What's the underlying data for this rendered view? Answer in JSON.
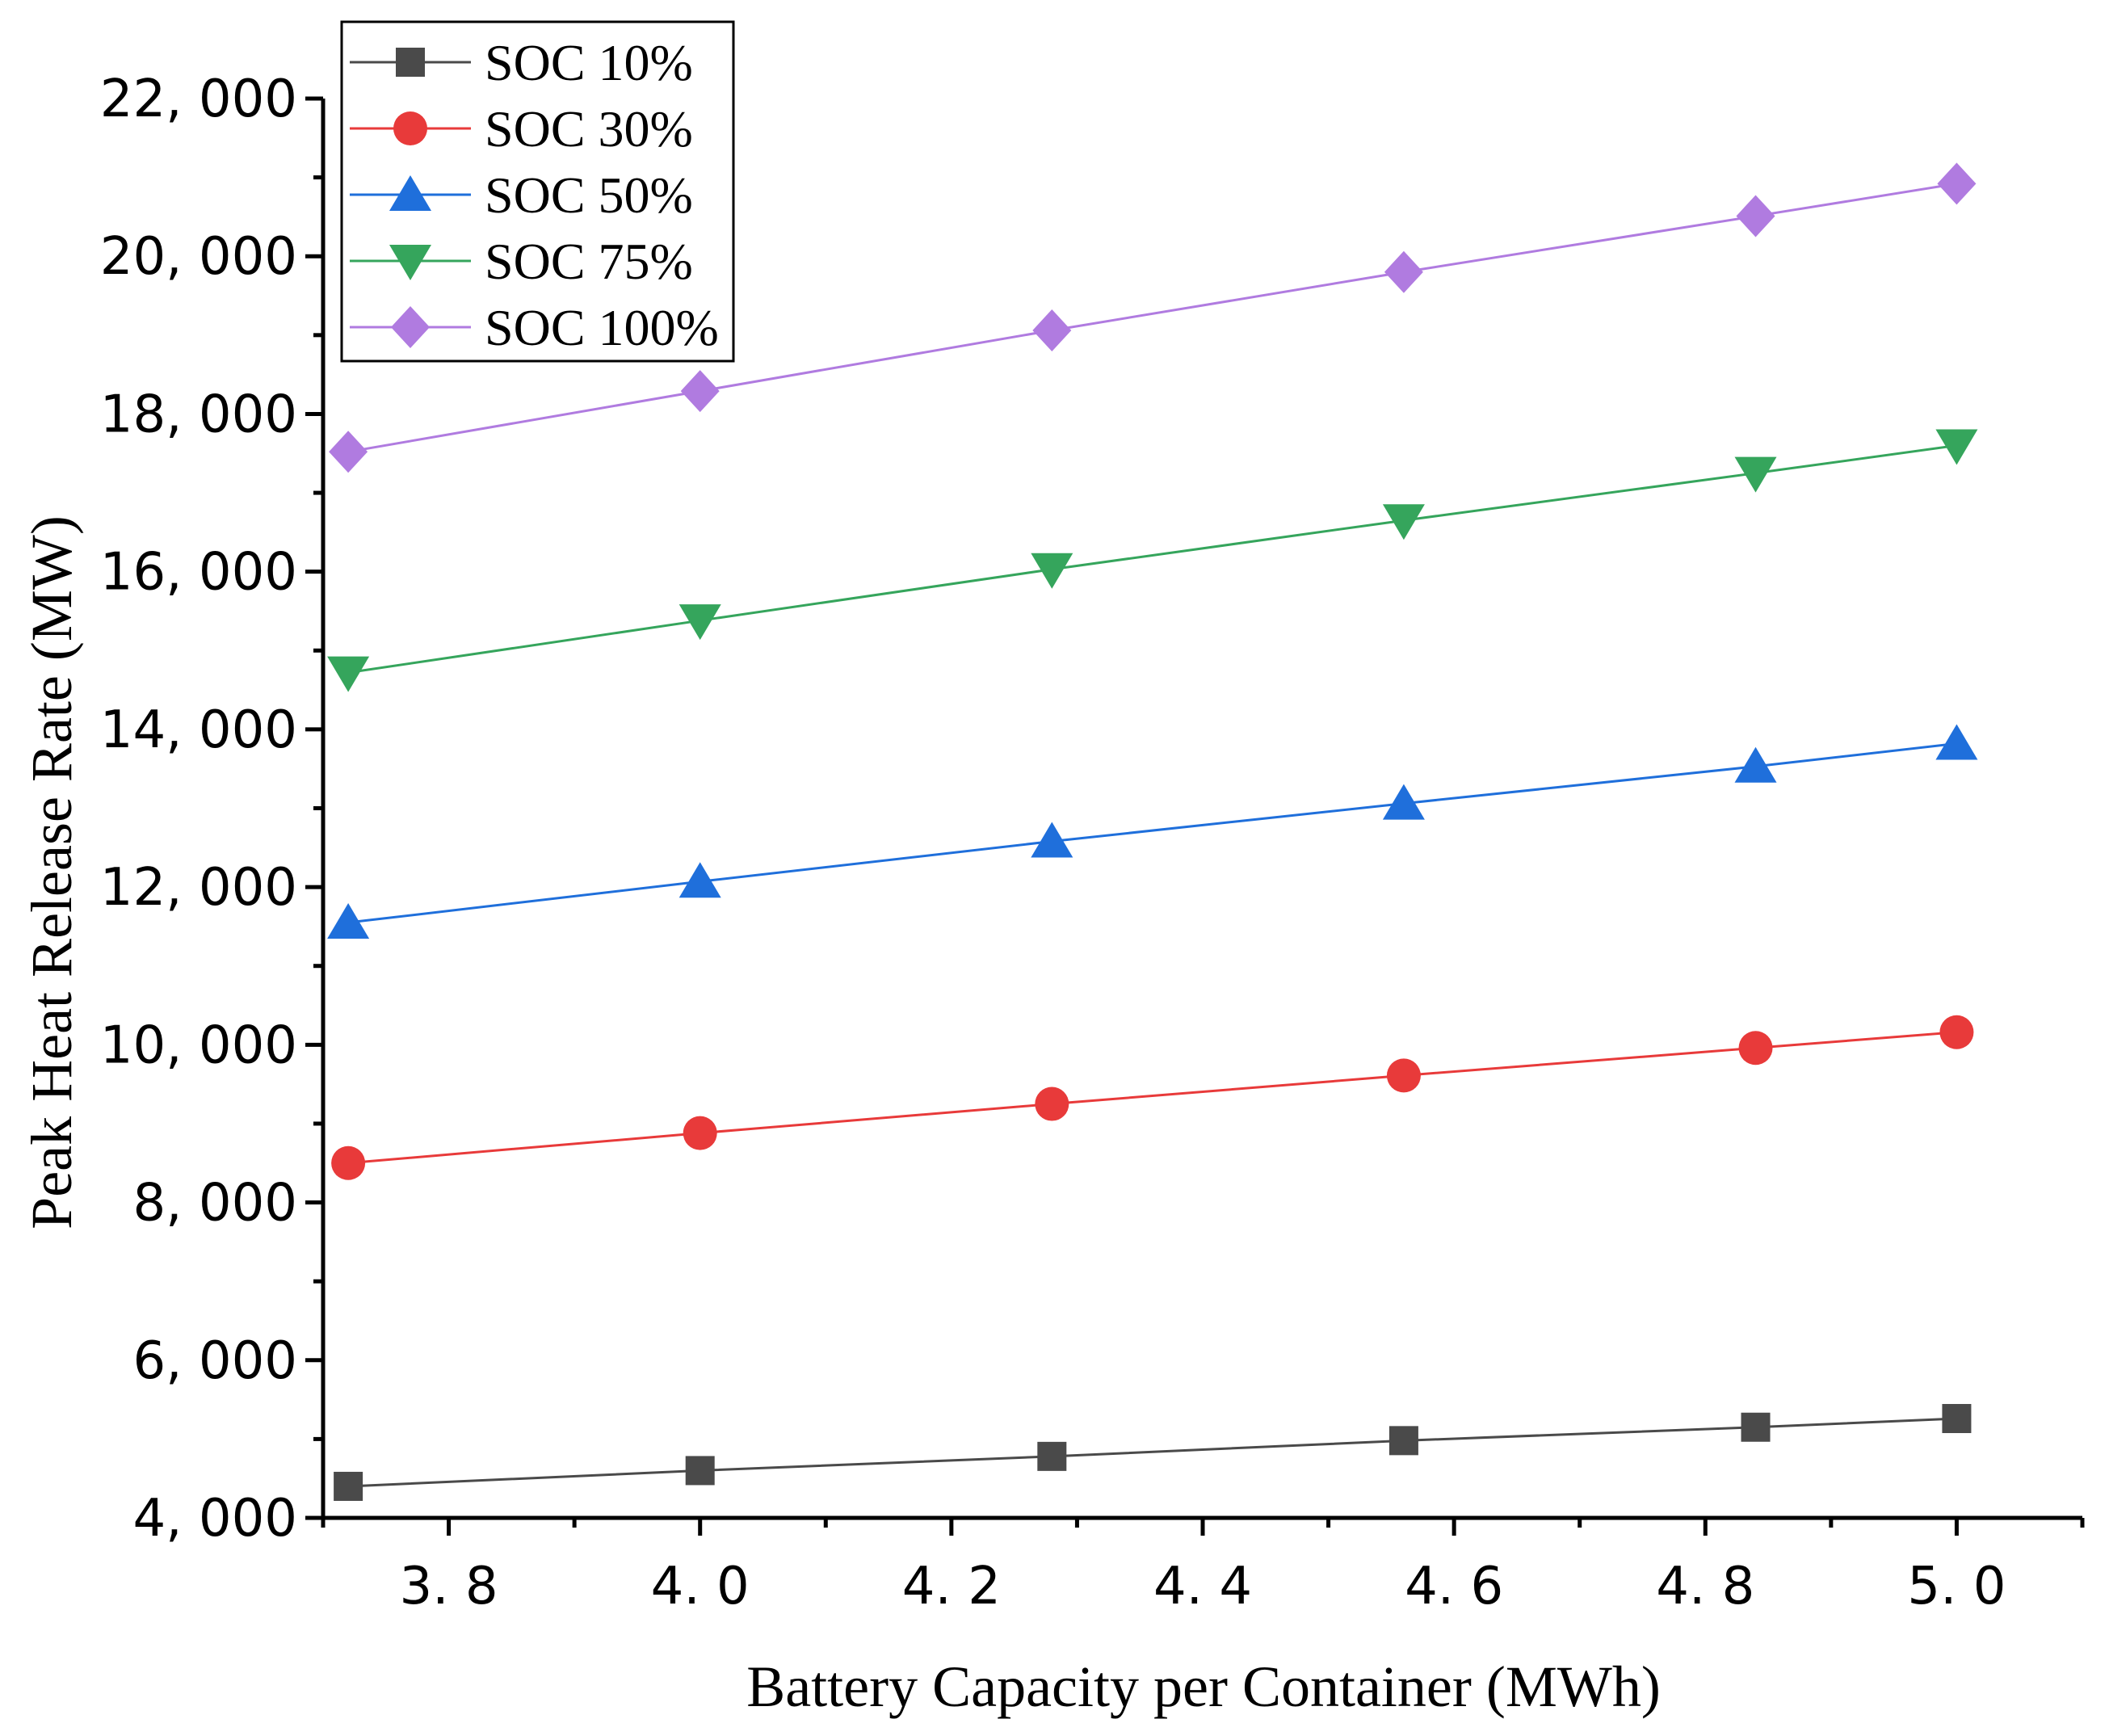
{
  "chart_data": {
    "type": "line",
    "title": "",
    "xlabel": "Battery Capacity per Container (MWh)",
    "ylabel": "Peak Heat Release Rate (MW)",
    "xlim": [
      3.7,
      5.1
    ],
    "ylim": [
      4000,
      22000
    ],
    "x_ticks": [
      3.8,
      4.0,
      4.2,
      4.4,
      4.6,
      4.8,
      5.0
    ],
    "x_tick_labels": [
      "3. 8",
      "4. 0",
      "4. 2",
      "4. 4",
      "4. 6",
      "4. 8",
      "5. 0"
    ],
    "y_ticks": [
      4000,
      6000,
      8000,
      10000,
      12000,
      14000,
      16000,
      18000,
      20000,
      22000
    ],
    "y_tick_labels": [
      "4, 000",
      "6, 000",
      "8, 000",
      "10, 000",
      "12, 000",
      "14, 000",
      "16, 000",
      "18, 000",
      "20, 000",
      "22, 000"
    ],
    "grid": false,
    "legend_position": "top-left",
    "x": [
      3.72,
      4.0,
      4.28,
      4.56,
      4.84,
      5.0
    ],
    "series": [
      {
        "name": "SOC 10%",
        "marker": "square",
        "color": "#4a4a4a",
        "values": [
          4400,
          4600,
          4780,
          4980,
          5150,
          5260
        ]
      },
      {
        "name": "SOC 30%",
        "marker": "circle",
        "color": "#e83a3a",
        "values": [
          8500,
          8880,
          9250,
          9610,
          9960,
          10160
        ]
      },
      {
        "name": "SOC 50%",
        "marker": "triangle-up",
        "color": "#1f6fdb",
        "values": [
          11550,
          12070,
          12580,
          13060,
          13530,
          13820
        ]
      },
      {
        "name": "SOC 75%",
        "marker": "triangle-down",
        "color": "#35a55c",
        "values": [
          14720,
          15380,
          16030,
          16650,
          17250,
          17600
        ]
      },
      {
        "name": "SOC 100%",
        "marker": "diamond",
        "color": "#b07be0",
        "values": [
          17520,
          18290,
          19060,
          19800,
          20510,
          20920
        ]
      }
    ]
  }
}
